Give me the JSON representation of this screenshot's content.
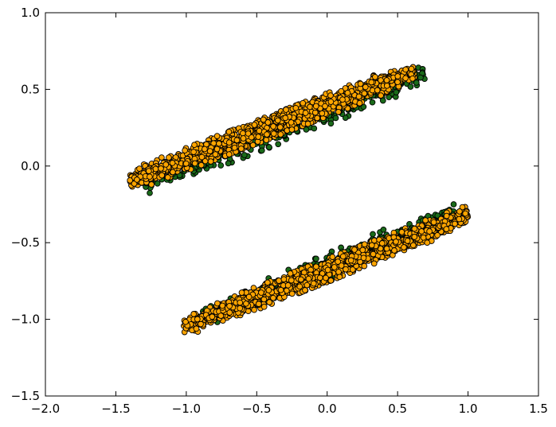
{
  "chart_data": {
    "type": "scatter",
    "title": "",
    "xlabel": "",
    "ylabel": "",
    "xlim": [
      -2.0,
      1.5
    ],
    "ylim": [
      -1.5,
      1.0
    ],
    "grid": false,
    "legend": "none",
    "xticks": [
      -2.0,
      -1.5,
      -1.0,
      -0.5,
      0.0,
      0.5,
      1.0,
      1.5
    ],
    "xtick_labels": [
      "−2.0",
      "−1.5",
      "−1.0",
      "−0.5",
      "0.0",
      "0.5",
      "1.0",
      "1.5"
    ],
    "yticks": [
      -1.5,
      -1.0,
      -0.5,
      0.0,
      0.5,
      1.0
    ],
    "ytick_labels": [
      "−1.5",
      "−1.0",
      "−0.5",
      "0.0",
      "0.5",
      "1.0"
    ],
    "series": [
      {
        "name": "green",
        "color": "#1a6b1a",
        "edge_color": "#000000",
        "clusters": [
          {
            "x_range": [
              -1.3,
              0.7
            ],
            "y_at_x_min": -0.12,
            "y_at_x_max": 0.6,
            "half_width": 0.08,
            "count": 350
          },
          {
            "x_range": [
              -1.0,
              0.9
            ],
            "y_at_x_min": -1.04,
            "y_at_x_max": -0.3,
            "half_width": 0.08,
            "count": 350
          }
        ]
      },
      {
        "name": "orange",
        "color": "#ffa500",
        "edge_color": "#000000",
        "clusters": [
          {
            "x_range": [
              -1.4,
              0.62
            ],
            "y_at_x_min": -0.1,
            "y_at_x_max": 0.62,
            "half_width": 0.075,
            "count": 1300
          },
          {
            "x_range": [
              -1.02,
              1.0
            ],
            "y_at_x_min": -1.05,
            "y_at_x_max": -0.32,
            "half_width": 0.075,
            "count": 1300
          }
        ]
      }
    ]
  }
}
